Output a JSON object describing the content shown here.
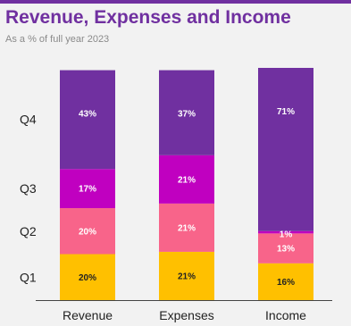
{
  "header": {
    "title": "Revenue, Expenses and Income",
    "subtitle": "As a % of full year 2023"
  },
  "chart_data": {
    "type": "bar",
    "stacked": true,
    "title": "Revenue, Expenses and Income",
    "subtitle": "As a % of full year 2023",
    "categories": [
      "Revenue",
      "Expenses",
      "Income"
    ],
    "stack_labels": [
      "Q1",
      "Q2",
      "Q3",
      "Q4"
    ],
    "series": [
      {
        "name": "Q1",
        "color": "#ffc000",
        "label_color": "#222222",
        "values": [
          20,
          21,
          16
        ],
        "labels": [
          "20%",
          "21%",
          "16%"
        ]
      },
      {
        "name": "Q2",
        "color": "#f8648a",
        "label_color": "#ffffff",
        "values": [
          20,
          21,
          13
        ],
        "labels": [
          "20%",
          "21%",
          "13%"
        ]
      },
      {
        "name": "Q3",
        "color": "#c000c0",
        "label_color": "#ffffff",
        "values": [
          17,
          21,
          1
        ],
        "labels": [
          "17%",
          "21%",
          "1%"
        ]
      },
      {
        "name": "Q4",
        "color": "#7030a0",
        "label_color": "#ffffff",
        "values": [
          43,
          37,
          71
        ],
        "labels": [
          "43%",
          "37%",
          "71%"
        ]
      }
    ],
    "ylim": [
      0,
      101
    ],
    "grid": false,
    "legend": "none"
  }
}
